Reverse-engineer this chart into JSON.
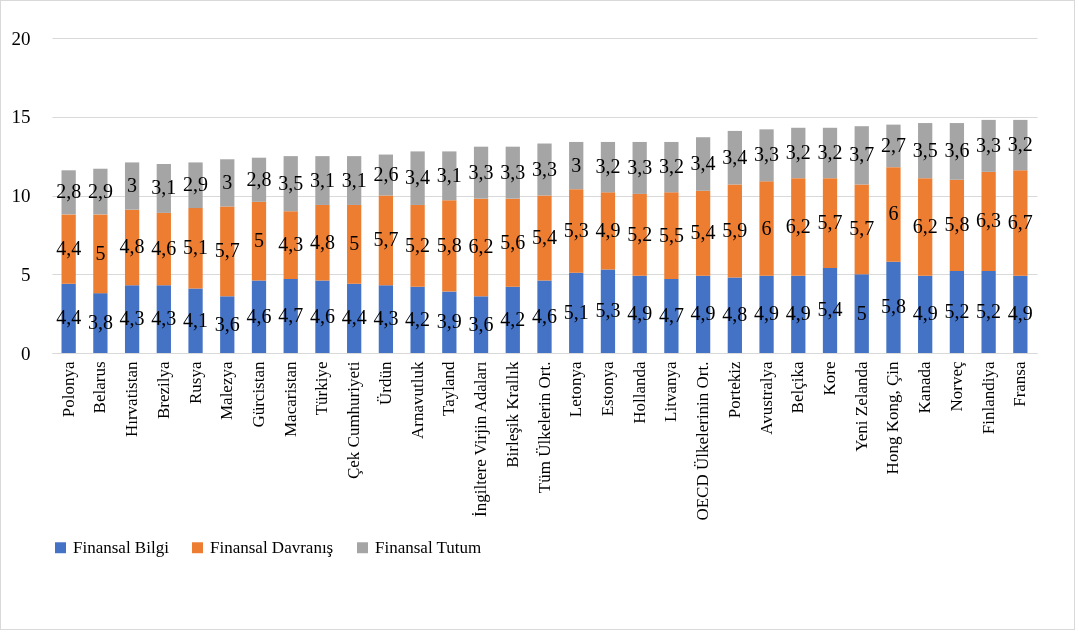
{
  "chart_data": {
    "type": "bar",
    "stacked": true,
    "categories": [
      "Polonya",
      "Belarus",
      "Hırvatistan",
      "Brezilya",
      "Rusya",
      "Malezya",
      "Gürcistan",
      "Macaristan",
      "Türkiye",
      "Çek Cumhuriyeti",
      "Ürdün",
      "Arnavutluk",
      "Tayland",
      "İngiltere Virjin Adaları",
      "Birleşik Krallık",
      "Tüm Ülkelerin Ort.",
      "Letonya",
      "Estonya",
      "Hollanda",
      "Litvanya",
      "OECD Ülkelerinin Ort.",
      "Portekiz",
      "Avustralya",
      "Belçika",
      "Kore",
      "Yeni Zelanda",
      "Hong Kong, Çin",
      "Kanada",
      "Norveç",
      "Finlandiya",
      "Fransa"
    ],
    "series": [
      {
        "name": "Finansal Bilgi",
        "color": "#4472c4",
        "values": [
          4.4,
          3.8,
          4.3,
          4.3,
          4.1,
          3.6,
          4.6,
          4.7,
          4.6,
          4.4,
          4.3,
          4.2,
          3.9,
          3.6,
          4.2,
          4.6,
          5.1,
          5.3,
          4.9,
          4.7,
          4.9,
          4.8,
          4.9,
          4.9,
          5.4,
          5,
          5.8,
          4.9,
          5.2,
          5.2,
          4.9
        ],
        "value_labels": [
          "4,4",
          "3,8",
          "4,3",
          "4,3",
          "4,1",
          "3,6",
          "4,6",
          "4,7",
          "4,6",
          "4,4",
          "4,3",
          "4,2",
          "3,9",
          "3,6",
          "4,2",
          "4,6",
          "5,1",
          "5,3",
          "4,9",
          "4,7",
          "4,9",
          "4,8",
          "4,9",
          "4,9",
          "5,4",
          "5",
          "5,8",
          "4,9",
          "5,2",
          "5,2",
          "4,9"
        ]
      },
      {
        "name": "Finansal Davranış",
        "color": "#ed7d31",
        "values": [
          4.4,
          5,
          4.8,
          4.6,
          5.1,
          5.7,
          5,
          4.3,
          4.8,
          5,
          5.7,
          5.2,
          5.8,
          6.2,
          5.6,
          5.4,
          5.3,
          4.9,
          5.2,
          5.5,
          5.4,
          5.9,
          6,
          6.2,
          5.7,
          5.7,
          6,
          6.2,
          5.8,
          6.3,
          6.7
        ],
        "value_labels": [
          "4,4",
          "5",
          "4,8",
          "4,6",
          "5,1",
          "5,7",
          "5",
          "4,3",
          "4,8",
          "5",
          "5,7",
          "5,2",
          "5,8",
          "6,2",
          "5,6",
          "5,4",
          "5,3",
          "4,9",
          "5,2",
          "5,5",
          "5,4",
          "5,9",
          "6",
          "6,2",
          "5,7",
          "5,7",
          "6",
          "6,2",
          "5,8",
          "6,3",
          "6,7"
        ]
      },
      {
        "name": "Finansal Tutum",
        "color": "#a5a5a5",
        "values": [
          2.8,
          2.9,
          3,
          3.1,
          2.9,
          3,
          2.8,
          3.5,
          3.1,
          3.1,
          2.6,
          3.4,
          3.1,
          3.3,
          3.3,
          3.3,
          3,
          3.2,
          3.3,
          3.2,
          3.4,
          3.4,
          3.3,
          3.2,
          3.2,
          3.7,
          2.7,
          3.5,
          3.6,
          3.3,
          3.2
        ],
        "value_labels": [
          "2,8",
          "2,9",
          "3",
          "3,1",
          "2,9",
          "3",
          "2,8",
          "3,5",
          "3,1",
          "3,1",
          "2,6",
          "3,4",
          "3,1",
          "3,3",
          "3,3",
          "3,3",
          "3",
          "3,2",
          "3,3",
          "3,2",
          "3,4",
          "3,4",
          "3,3",
          "3,2",
          "3,2",
          "3,7",
          "2,7",
          "3,5",
          "3,6",
          "3,3",
          "3,2"
        ]
      }
    ],
    "ylim": [
      0,
      20
    ],
    "yticks": [
      0,
      5,
      10,
      15,
      20
    ],
    "grid": "y",
    "legend": "bottom"
  }
}
